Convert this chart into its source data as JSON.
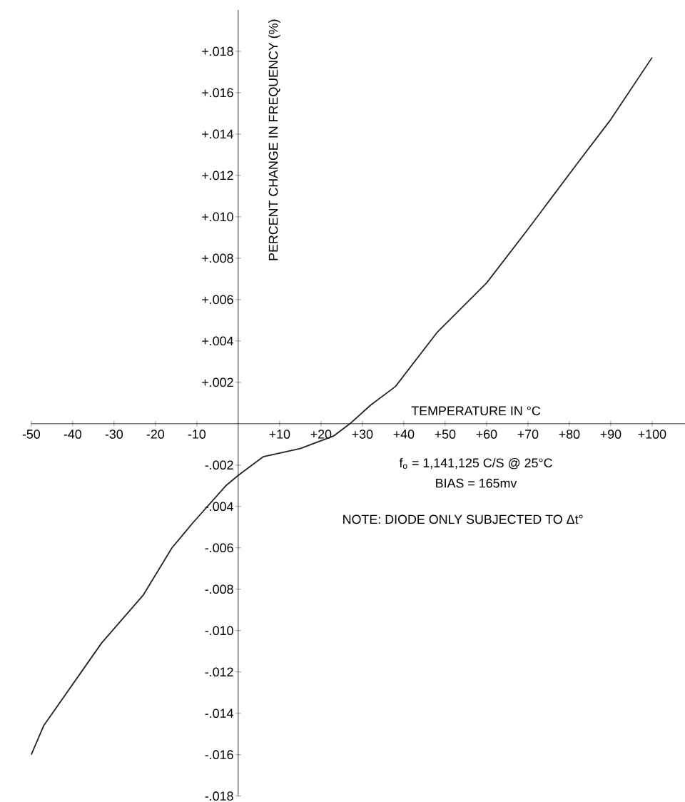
{
  "chart_data": {
    "type": "line",
    "xlabel": "TEMPERATURE IN °C",
    "ylabel": "PERCENT CHANGE IN FREQUENCY (%)",
    "x": [
      -50,
      -47,
      -33,
      -23,
      -16,
      -11,
      -3,
      0,
      6,
      15,
      23,
      27,
      32,
      38,
      48,
      60,
      70,
      82,
      90,
      100
    ],
    "series": [
      {
        "color": "#222222",
        "values": [
          -0.016,
          -0.0146,
          -0.0106,
          -0.0083,
          -0.006,
          -0.0048,
          -0.003,
          -0.0025,
          -0.0016,
          -0.0012,
          -0.0006,
          0,
          0.0009,
          0.0018,
          0.0044,
          0.0068,
          0.0094,
          0.0126,
          0.0147,
          0.0177
        ]
      }
    ],
    "xlim": [
      -50,
      108
    ],
    "ylim": [
      -0.018,
      0.02
    ],
    "xticks": [
      {
        "value": -50,
        "label": "-50"
      },
      {
        "value": -40,
        "label": "-40"
      },
      {
        "value": -30,
        "label": "-30"
      },
      {
        "value": -20,
        "label": "-20"
      },
      {
        "value": -10,
        "label": "-10"
      },
      {
        "value": 0,
        "label": null
      },
      {
        "value": 10,
        "label": "+10"
      },
      {
        "value": 20,
        "label": "+20"
      },
      {
        "value": 30,
        "label": "+30"
      },
      {
        "value": 40,
        "label": "+40"
      },
      {
        "value": 50,
        "label": "+50"
      },
      {
        "value": 60,
        "label": "+60"
      },
      {
        "value": 70,
        "label": "+70"
      },
      {
        "value": 80,
        "label": "+80"
      },
      {
        "value": 90,
        "label": "+90"
      },
      {
        "value": 100,
        "label": "+100"
      }
    ],
    "yticks": [
      {
        "value": -0.018,
        "label": "-.018"
      },
      {
        "value": -0.016,
        "label": "-.016"
      },
      {
        "value": -0.014,
        "label": "-.014"
      },
      {
        "value": -0.012,
        "label": "-.012"
      },
      {
        "value": -0.01,
        "label": "-.010"
      },
      {
        "value": -0.008,
        "label": "-.008"
      },
      {
        "value": -0.006,
        "label": "-.006"
      },
      {
        "value": -0.004,
        "label": "-.004"
      },
      {
        "value": -0.002,
        "label": "-.002"
      },
      {
        "value": 0,
        "label": null
      },
      {
        "value": 0.002,
        "label": "+.002"
      },
      {
        "value": 0.004,
        "label": "+.004"
      },
      {
        "value": 0.006,
        "label": "+.006"
      },
      {
        "value": 0.008,
        "label": "+.008"
      },
      {
        "value": 0.01,
        "label": "+.010"
      },
      {
        "value": 0.012,
        "label": "+.012"
      },
      {
        "value": 0.014,
        "label": "+.014"
      },
      {
        "value": 0.016,
        "label": "+.016"
      },
      {
        "value": 0.018,
        "label": "+.018"
      }
    ],
    "grid": false,
    "marker": "none",
    "line_style": "solid",
    "annotations": [
      "f$_{o}$ = 1,141,125 C/S @ 25°C",
      "BIAS = 165mv",
      "NOTE: DIODE ONLY SUBJECTED TO Δt°"
    ]
  }
}
